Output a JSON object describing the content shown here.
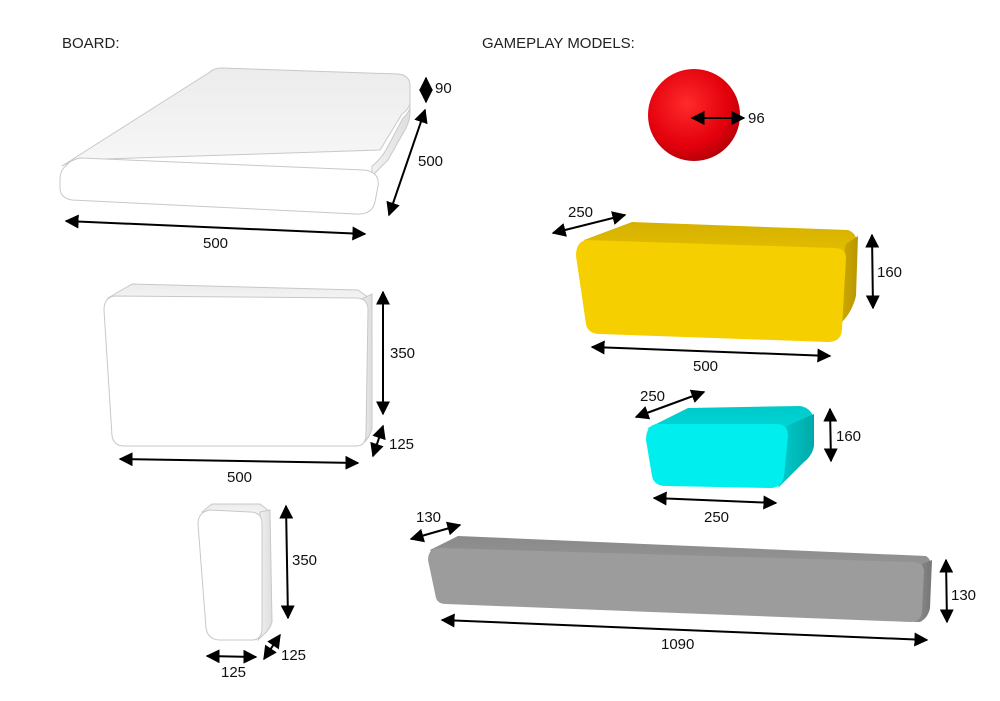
{
  "sections": {
    "board_title": "BOARD:",
    "gameplay_title": "GAMEPLAY MODELS:"
  },
  "colors": {
    "board": "#ffffff",
    "ball": "#e3000c",
    "yellow": "#f5cf00",
    "cyan": "#00eeee",
    "gray": "#9c9c9c"
  },
  "board": {
    "slab": {
      "width": "500",
      "depth": "500",
      "height": "90"
    },
    "wall": {
      "width": "500",
      "height": "350",
      "depth": "125"
    },
    "pillar": {
      "width": "125",
      "height": "350",
      "depth": "125"
    }
  },
  "gameplay": {
    "ball": {
      "diameter": "96"
    },
    "yellow_block": {
      "depth": "250",
      "height": "160",
      "width": "500"
    },
    "cyan_block": {
      "depth": "250",
      "height": "160",
      "width": "250"
    },
    "gray_bar": {
      "depth": "130",
      "height": "130",
      "width": "1090"
    }
  }
}
